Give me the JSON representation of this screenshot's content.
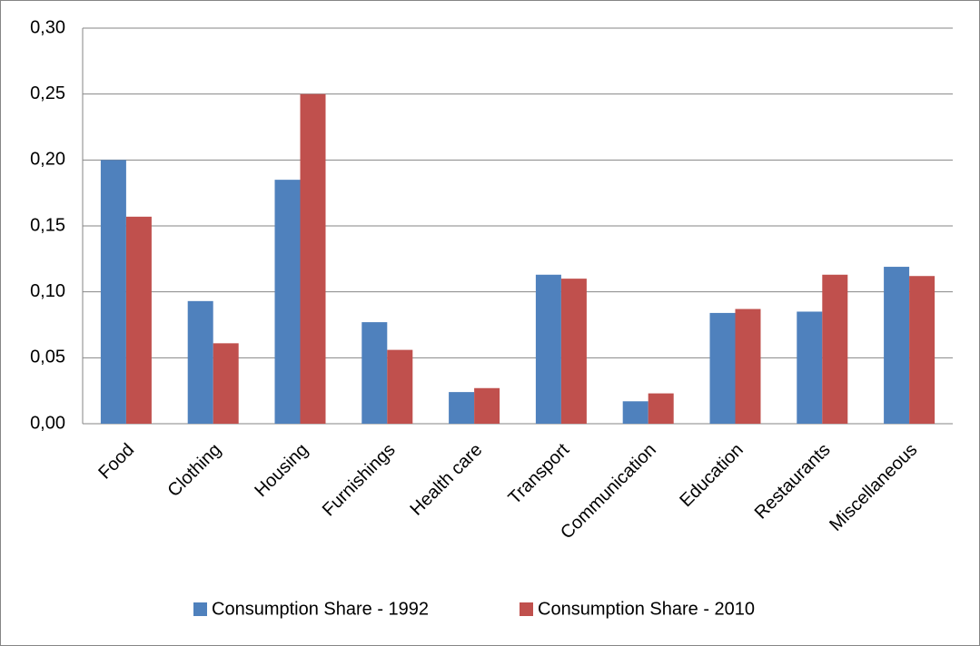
{
  "chart_data": {
    "type": "bar",
    "categories": [
      "Food",
      "Clothing",
      "Housing",
      "Furnishings",
      "Health care",
      "Transport",
      "Communication",
      "Education",
      "Restaurants",
      "Miscellaneous"
    ],
    "series": [
      {
        "name": "Consumption Share - 1992",
        "color": "#4f81bd",
        "values": [
          0.2,
          0.093,
          0.185,
          0.077,
          0.024,
          0.113,
          0.017,
          0.084,
          0.085,
          0.119
        ]
      },
      {
        "name": "Consumption Share - 2010",
        "color": "#c0504d",
        "values": [
          0.157,
          0.061,
          0.25,
          0.056,
          0.027,
          0.11,
          0.023,
          0.087,
          0.113,
          0.112
        ]
      }
    ],
    "ylim": [
      0,
      0.3
    ],
    "yticks": [
      {
        "value": 0,
        "label": "0,00"
      },
      {
        "value": 0.05,
        "label": "0,05"
      },
      {
        "value": 0.1,
        "label": "0,10"
      },
      {
        "value": 0.15,
        "label": "0,15"
      },
      {
        "value": 0.2,
        "label": "0,20"
      },
      {
        "value": 0.25,
        "label": "0,25"
      },
      {
        "value": 0.3,
        "label": "0,30"
      }
    ],
    "grid": true,
    "legend": "bottom"
  }
}
